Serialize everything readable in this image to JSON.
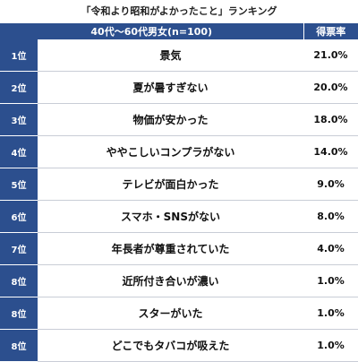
{
  "chart_data": {
    "type": "table",
    "title": "「令和より昭和がよかったこと」ランキング",
    "header": {
      "category": "40代〜60代男女(n=100)",
      "value": "得票率"
    },
    "rows": [
      {
        "rank": "1位",
        "label": "景気",
        "value": "21.0%"
      },
      {
        "rank": "2位",
        "label": "夏が暑すぎない",
        "value": "20.0%"
      },
      {
        "rank": "3位",
        "label": "物価が安かった",
        "value": "18.0%"
      },
      {
        "rank": "4位",
        "label": "ややこしいコンプラがない",
        "value": "14.0%"
      },
      {
        "rank": "5位",
        "label": "テレビが面白かった",
        "value": "9.0%"
      },
      {
        "rank": "6位",
        "label": "スマホ・SNSがない",
        "value": "8.0%"
      },
      {
        "rank": "7位",
        "label": "年長者が尊重されていた",
        "value": "4.0%"
      },
      {
        "rank": "8位",
        "label": "近所付き合いが濃い",
        "value": "1.0%"
      },
      {
        "rank": "8位",
        "label": "スターがいた",
        "value": "1.0%"
      },
      {
        "rank": "8位",
        "label": "どこでもタバコが吸えた",
        "value": "1.0%"
      }
    ]
  },
  "colors": {
    "header_bg": "#2c4f8e",
    "header_text": "#ffffff",
    "row_divider": "#c9cdd6"
  }
}
